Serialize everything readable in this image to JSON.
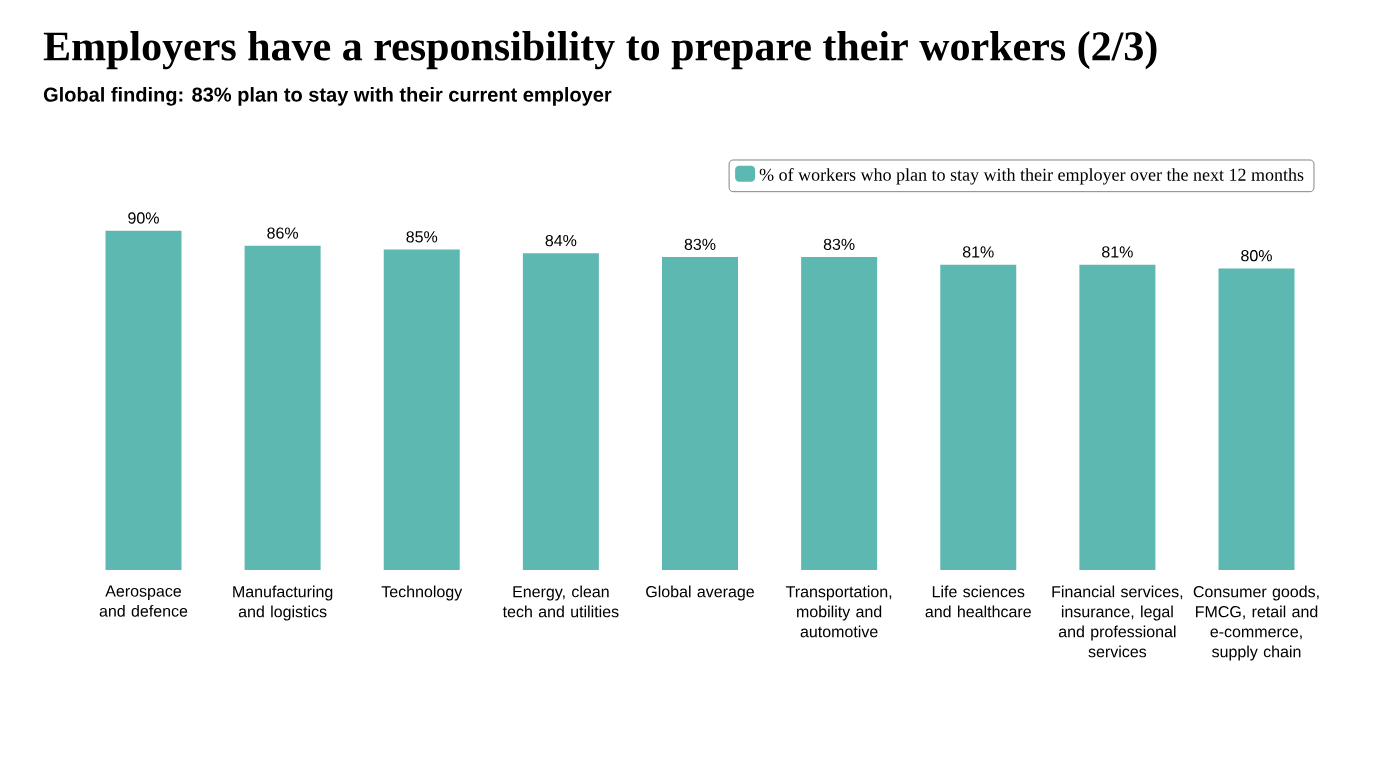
{
  "chart_data": {
    "type": "bar",
    "title": "Employers have a responsibility to prepare their workers (2/3)",
    "subtitle": "Global finding: 83% plan to stay with their current employer",
    "categories": [
      "Aerospace and defence",
      "Manufacturing and logistics",
      "Technology",
      "Energy, clean tech and utilities",
      "Global average",
      "Transportation, mobility and automotive",
      "Life sciences and healthcare",
      "Financial services, insurance, legal and professional services",
      "Consumer goods, FMCG, retail and e-commerce, supply chain"
    ],
    "series": [
      {
        "name": "% of workers who plan to stay with their employer over the next 12 months",
        "color": "#5cb8b0",
        "values": [
          90,
          86,
          85,
          84,
          83,
          83,
          81,
          81,
          80
        ],
        "value_labels": [
          "90%",
          "86%",
          "85%",
          "84%",
          "83%",
          "83%",
          "81%",
          "81%",
          "80%"
        ]
      }
    ],
    "legend": "top right"
  }
}
